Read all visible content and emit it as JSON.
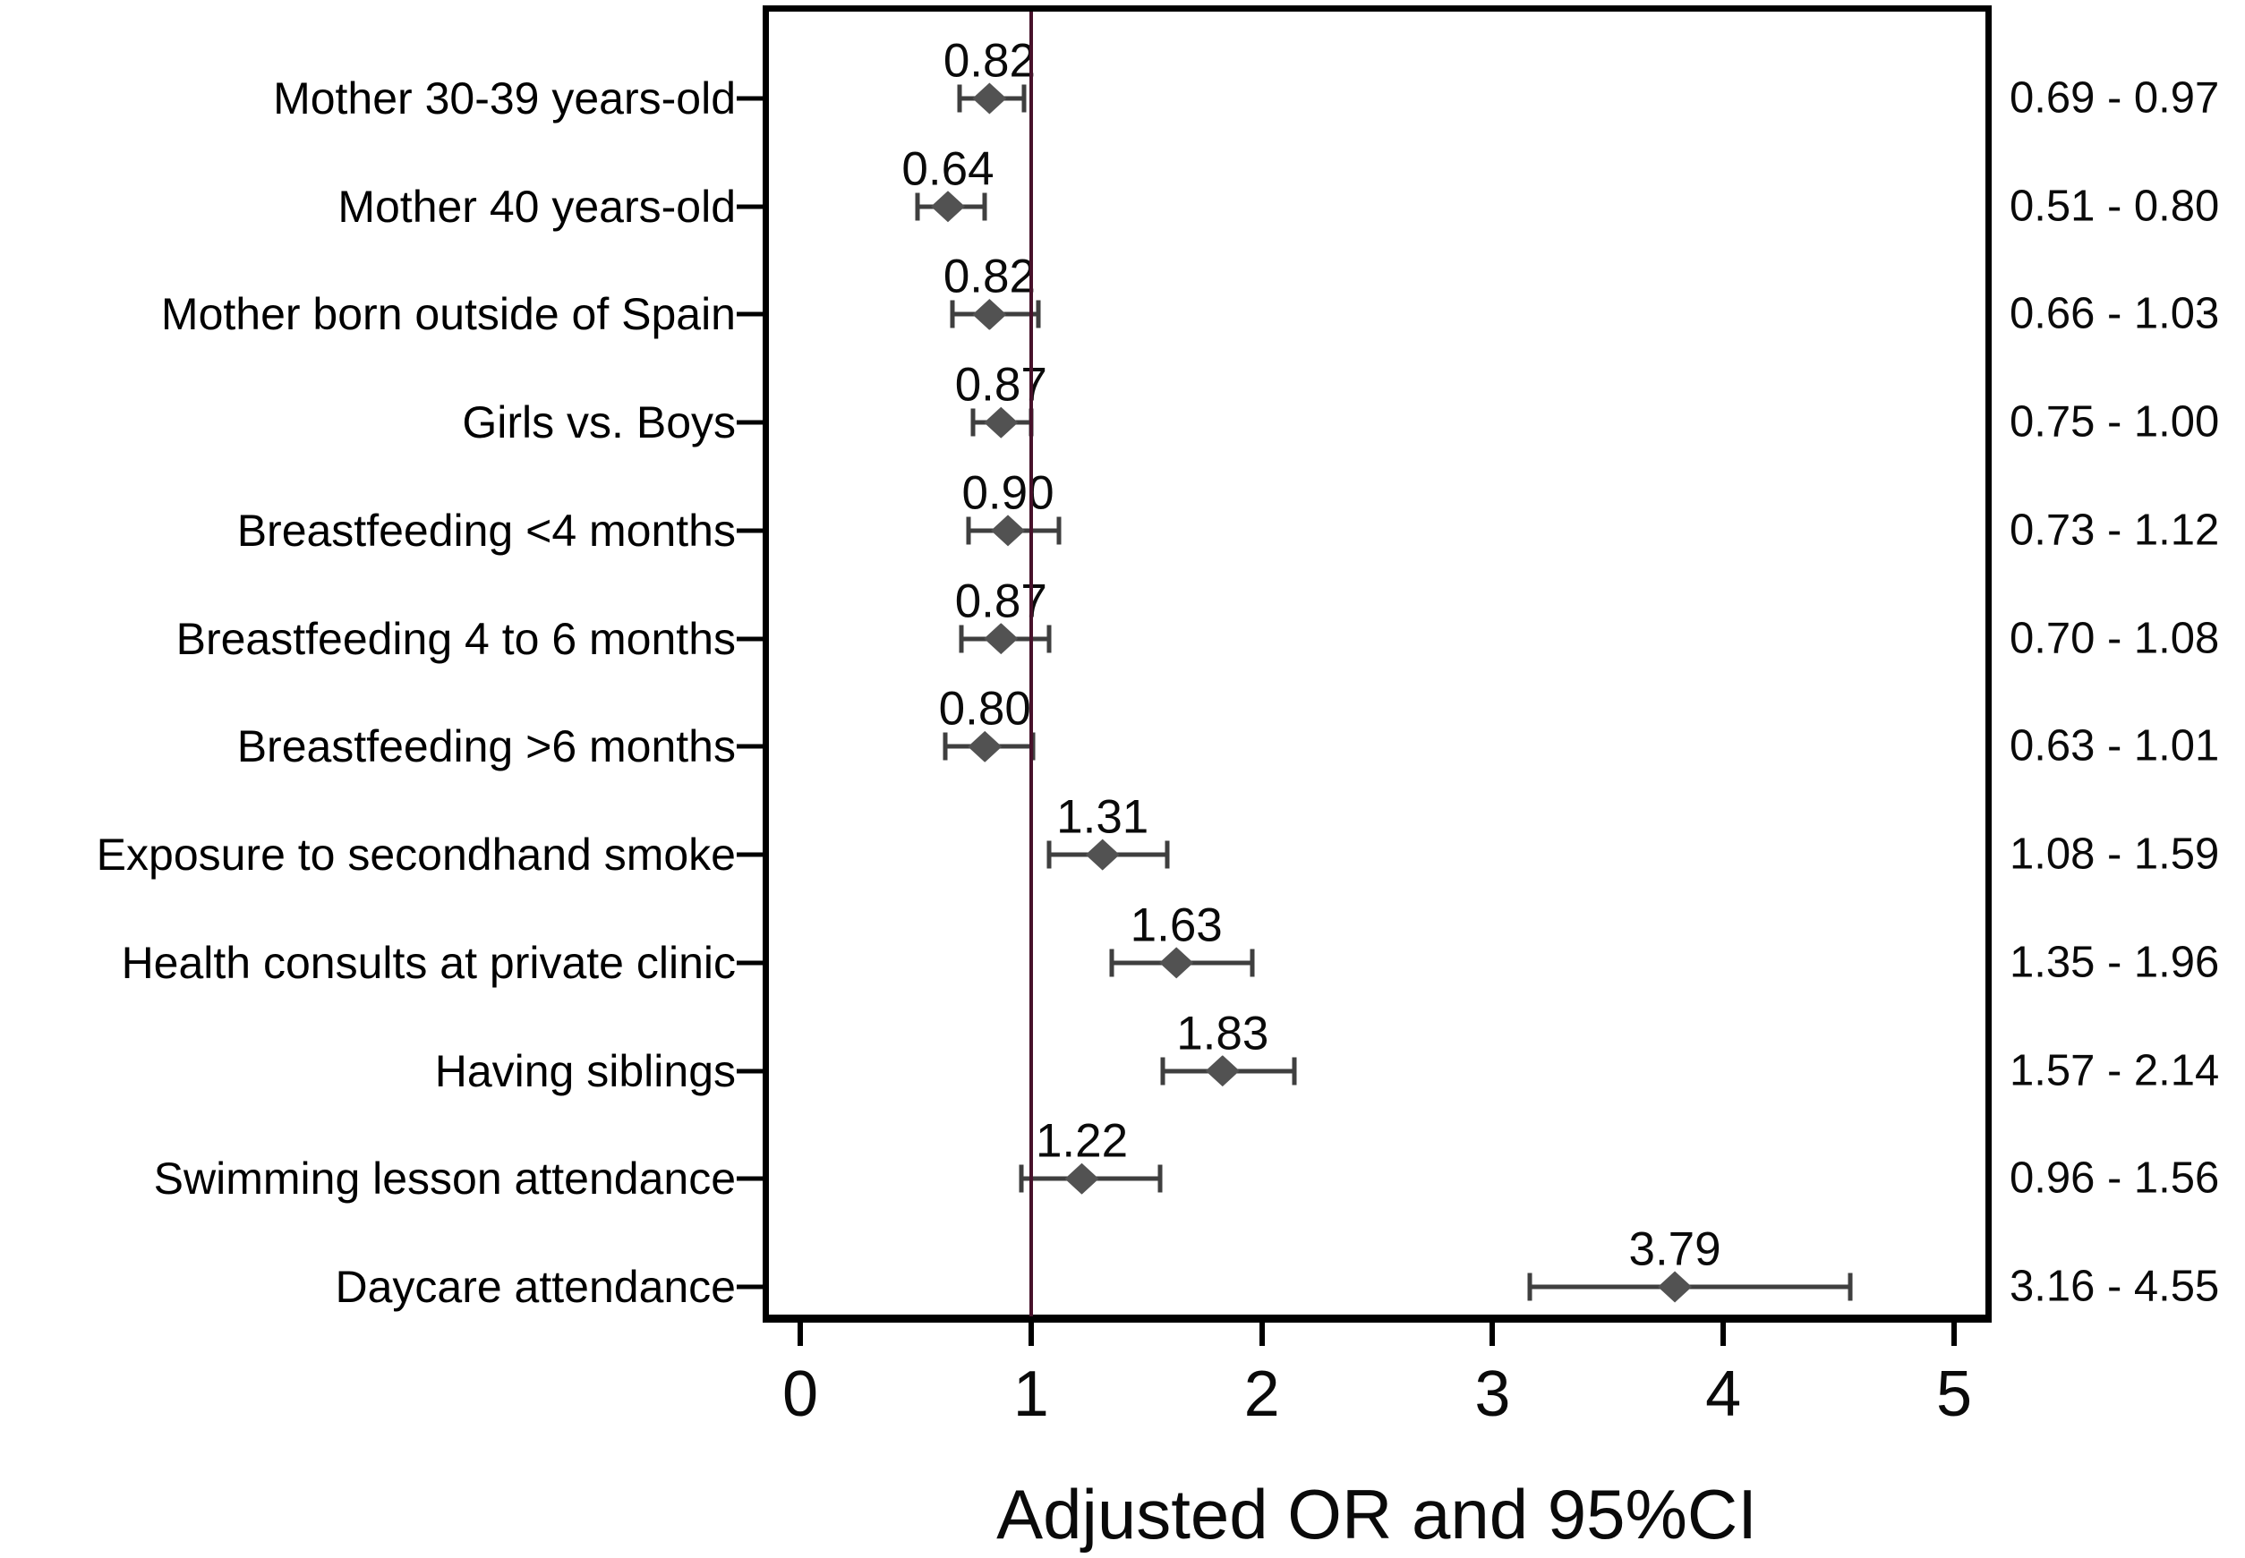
{
  "chart_data": {
    "type": "forest-plot-scatter",
    "title": "",
    "xlabel": "Adjusted OR and 95%CI",
    "ylabel": "",
    "xlim": [
      0,
      5
    ],
    "x_ticks": [
      "0",
      "1",
      "2",
      "3",
      "4",
      "5"
    ],
    "x_tick_values": [
      0,
      1,
      2,
      3,
      4,
      5
    ],
    "reference_line": 1.0,
    "grid": false,
    "legend": "none",
    "rows": [
      {
        "label": "Mother 30-39 years-old",
        "or": 0.82,
        "or_label": "0.82",
        "ci_low": 0.69,
        "ci_high": 0.97,
        "ci_label": "0.69 - 0.97"
      },
      {
        "label": "Mother 40 years-old",
        "or": 0.64,
        "or_label": "0.64",
        "ci_low": 0.51,
        "ci_high": 0.8,
        "ci_label": "0.51 - 0.80"
      },
      {
        "label": "Mother born outside of Spain",
        "or": 0.82,
        "or_label": "0.82",
        "ci_low": 0.66,
        "ci_high": 1.03,
        "ci_label": "0.66 - 1.03"
      },
      {
        "label": "Girls vs. Boys",
        "or": 0.87,
        "or_label": "0.87",
        "ci_low": 0.75,
        "ci_high": 1.0,
        "ci_label": "0.75 - 1.00"
      },
      {
        "label": "Breastfeeding <4 months",
        "or": 0.9,
        "or_label": "0.90",
        "ci_low": 0.73,
        "ci_high": 1.12,
        "ci_label": "0.73 - 1.12"
      },
      {
        "label": "Breastfeeding 4 to 6 months",
        "or": 0.87,
        "or_label": "0.87",
        "ci_low": 0.7,
        "ci_high": 1.08,
        "ci_label": "0.70 - 1.08"
      },
      {
        "label": "Breastfeeding >6 months",
        "or": 0.8,
        "or_label": "0.80",
        "ci_low": 0.63,
        "ci_high": 1.01,
        "ci_label": "0.63 - 1.01"
      },
      {
        "label": "Exposure to secondhand smoke",
        "or": 1.31,
        "or_label": "1.31",
        "ci_low": 1.08,
        "ci_high": 1.59,
        "ci_label": "1.08 - 1.59"
      },
      {
        "label": "Health consults at private clinic",
        "or": 1.63,
        "or_label": "1.63",
        "ci_low": 1.35,
        "ci_high": 1.96,
        "ci_label": "1.35 - 1.96"
      },
      {
        "label": "Having siblings",
        "or": 1.83,
        "or_label": "1.83",
        "ci_low": 1.57,
        "ci_high": 2.14,
        "ci_label": "1.57 - 2.14"
      },
      {
        "label": "Swimming lesson attendance",
        "or": 1.22,
        "or_label": "1.22",
        "ci_low": 0.96,
        "ci_high": 1.56,
        "ci_label": "0.96 - 1.56"
      },
      {
        "label": "Daycare attendance",
        "or": 3.79,
        "or_label": "3.79",
        "ci_low": 3.16,
        "ci_high": 4.55,
        "ci_label": "3.16 - 4.55"
      }
    ],
    "colors": {
      "marker": "#525252",
      "error_bar": "#3f3f3f",
      "reference_line": "#47112a",
      "axis": "#000000",
      "text": "#000000",
      "background": "#ffffff"
    }
  }
}
